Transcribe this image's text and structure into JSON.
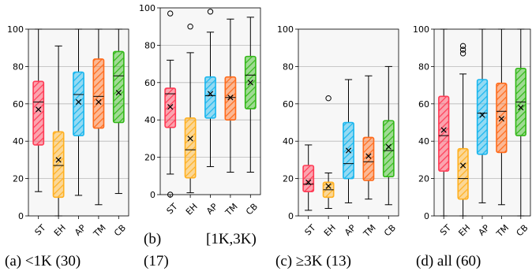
{
  "colors": {
    "ST": "#ff3b55",
    "EH": "#ffb020",
    "AP": "#19b6ee",
    "TM": "#ff6a1a",
    "CB": "#33b818",
    "grid": "#b8b8b8",
    "panel_bg": "#f7f7f7"
  },
  "captions": [
    {
      "label": "(a)",
      "text": "<1K (30)"
    },
    {
      "label": "(b)",
      "text": "[1K,3K)",
      "extra": "(17)"
    },
    {
      "label": "(c)",
      "text": "≥3K (13)"
    },
    {
      "label": "(d)",
      "text": "all (60)"
    }
  ],
  "chart_data": [
    {
      "type": "box",
      "panel": "a",
      "ylim": [
        0,
        100
      ],
      "yticks": [
        0,
        20,
        40,
        60,
        80,
        100
      ],
      "grid": true,
      "categories": [
        "ST",
        "EH",
        "AP",
        "TM",
        "CB"
      ],
      "boxes": [
        {
          "name": "ST",
          "whislo": 13,
          "q1": 38,
          "med": 61,
          "q3": 72,
          "whishi": 100,
          "mean": 57,
          "fliers": []
        },
        {
          "name": "EH",
          "whislo": 0,
          "q1": 10,
          "med": 27,
          "q3": 45,
          "whishi": 91,
          "mean": 30,
          "fliers": []
        },
        {
          "name": "AP",
          "whislo": 11,
          "q1": 43,
          "med": 65,
          "q3": 77,
          "whishi": 100,
          "mean": 61,
          "fliers": []
        },
        {
          "name": "TM",
          "whislo": 6,
          "q1": 47,
          "med": 64,
          "q3": 84,
          "whishi": 100,
          "mean": 61,
          "fliers": []
        },
        {
          "name": "CB",
          "whislo": 12,
          "q1": 50,
          "med": 75,
          "q3": 88,
          "whishi": 100,
          "mean": 66,
          "fliers": []
        }
      ]
    },
    {
      "type": "box",
      "panel": "b",
      "ylim": [
        0,
        100
      ],
      "yticks": [
        0,
        20,
        40,
        60,
        80,
        100
      ],
      "grid": true,
      "categories": [
        "ST",
        "EH",
        "AP",
        "TM",
        "CB"
      ],
      "boxes": [
        {
          "name": "ST",
          "whislo": 11,
          "q1": 36,
          "med": 54,
          "q3": 57,
          "whishi": 72,
          "mean": 47,
          "fliers": [
            0,
            97
          ]
        },
        {
          "name": "EH",
          "whislo": 1,
          "q1": 9,
          "med": 24,
          "q3": 41,
          "whishi": 76,
          "mean": 30,
          "fliers": [
            90
          ]
        },
        {
          "name": "AP",
          "whislo": 15,
          "q1": 41,
          "med": 53,
          "q3": 63,
          "whishi": 87,
          "mean": 54,
          "fliers": [
            98
          ]
        },
        {
          "name": "TM",
          "whislo": 12,
          "q1": 40,
          "med": 52,
          "q3": 63,
          "whishi": 94,
          "mean": 52,
          "fliers": []
        },
        {
          "name": "CB",
          "whislo": 12,
          "q1": 46,
          "med": 64,
          "q3": 74,
          "whishi": 95,
          "mean": 60,
          "fliers": []
        }
      ]
    },
    {
      "type": "box",
      "panel": "c",
      "ylim": [
        0,
        100
      ],
      "yticks": [
        0,
        20,
        40,
        60,
        80,
        100
      ],
      "grid": true,
      "categories": [
        "ST",
        "EH",
        "AP",
        "TM",
        "CB"
      ],
      "boxes": [
        {
          "name": "ST",
          "whislo": 3,
          "q1": 13,
          "med": 17,
          "q3": 27,
          "whishi": 38,
          "mean": 18,
          "fliers": []
        },
        {
          "name": "EH",
          "whislo": 4,
          "q1": 10,
          "med": 14,
          "q3": 18,
          "whishi": 23,
          "mean": 16,
          "fliers": [
            63
          ]
        },
        {
          "name": "AP",
          "whislo": 7,
          "q1": 20,
          "med": 28,
          "q3": 50,
          "whishi": 73,
          "mean": 35,
          "fliers": []
        },
        {
          "name": "TM",
          "whislo": 9,
          "q1": 19,
          "med": 29,
          "q3": 42,
          "whishi": 75,
          "mean": 32,
          "fliers": []
        },
        {
          "name": "CB",
          "whislo": 6,
          "q1": 21,
          "med": 35,
          "q3": 51,
          "whishi": 80,
          "mean": 37,
          "fliers": []
        }
      ]
    },
    {
      "type": "box",
      "panel": "d",
      "ylim": [
        0,
        100
      ],
      "yticks": [
        0,
        20,
        40,
        60,
        80,
        100
      ],
      "grid": true,
      "categories": [
        "ST",
        "EH",
        "AP",
        "TM",
        "CB"
      ],
      "boxes": [
        {
          "name": "ST",
          "whislo": 0,
          "q1": 24,
          "med": 43,
          "q3": 64,
          "whishi": 100,
          "mean": 46,
          "fliers": []
        },
        {
          "name": "EH",
          "whislo": 0,
          "q1": 9,
          "med": 20,
          "q3": 36,
          "whishi": 76,
          "mean": 27,
          "fliers": [
            87,
            89,
            91
          ]
        },
        {
          "name": "AP",
          "whislo": 7,
          "q1": 33,
          "med": 55,
          "q3": 73,
          "whishi": 100,
          "mean": 54,
          "fliers": []
        },
        {
          "name": "TM",
          "whislo": 6,
          "q1": 34,
          "med": 56,
          "q3": 71,
          "whishi": 100,
          "mean": 52,
          "fliers": []
        },
        {
          "name": "CB",
          "whislo": 0,
          "q1": 43,
          "med": 61,
          "q3": 79,
          "whishi": 100,
          "mean": 58,
          "fliers": []
        }
      ]
    }
  ]
}
